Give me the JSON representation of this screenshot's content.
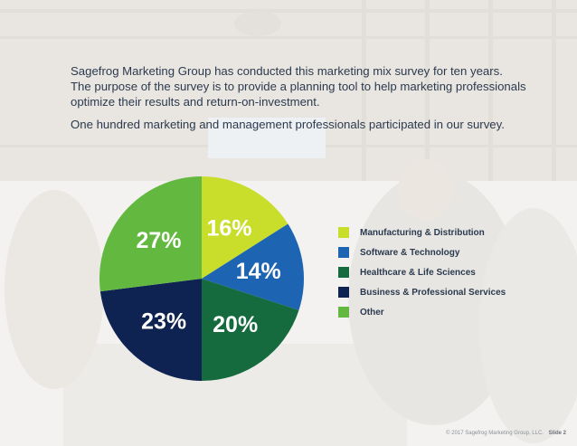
{
  "intro": {
    "line1": "Sagefrog Marketing Group has conducted this marketing mix survey for ten years.",
    "line2": "The purpose of the survey is to provide a planning tool to help marketing professionals",
    "line3": "optimize their results and return-on-investment.",
    "line4": "One hundred marketing and management professionals participated in our survey."
  },
  "chart_data": {
    "type": "pie",
    "categories": [
      "Manufacturing & Distribution",
      "Software & Technology",
      "Healthcare & Life Sciences",
      "Business & Professional Services",
      "Other"
    ],
    "values": [
      16,
      14,
      20,
      23,
      27
    ],
    "data_labels": [
      "16%",
      "14%",
      "20%",
      "23%",
      "27%"
    ],
    "colors": [
      "#c9dd2b",
      "#1d64b3",
      "#156b3e",
      "#0e2352",
      "#63b93f"
    ],
    "legend_position": "right"
  },
  "footer": {
    "copyright": "© 2017 Sagefrog Marketing Group, LLC.",
    "slide": "Slide 2"
  }
}
